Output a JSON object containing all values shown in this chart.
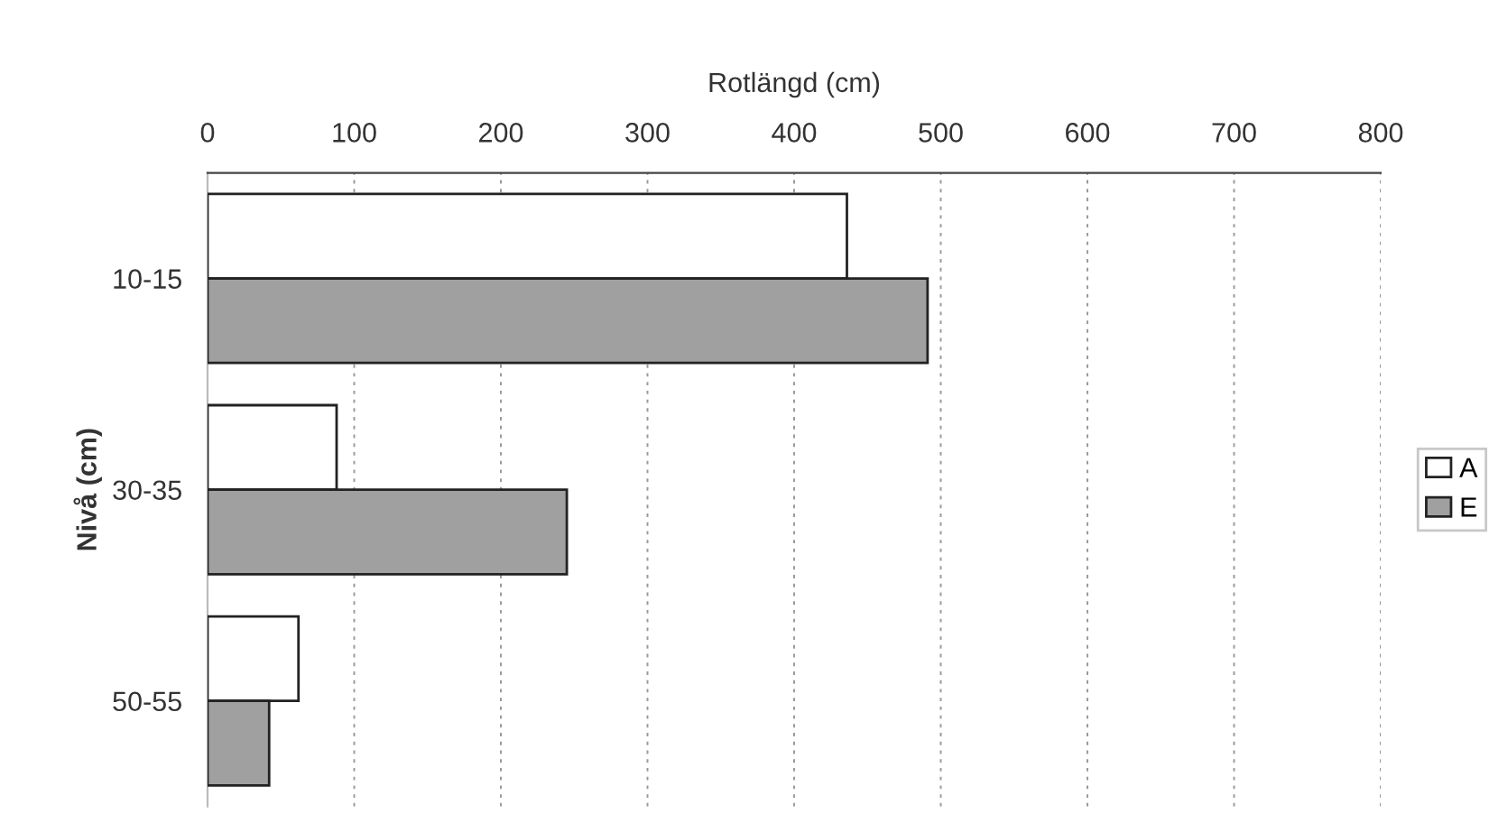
{
  "chart_data": {
    "type": "bar",
    "orientation": "horizontal",
    "xlabel": "Rotlängd (cm)",
    "ylabel": "Nivå (cm)",
    "categories": [
      "10-15",
      "30-35",
      "50-55"
    ],
    "series": [
      {
        "name": "A",
        "color": "#ffffff",
        "values": [
          436,
          88,
          62
        ]
      },
      {
        "name": "E",
        "color": "#a0a0a0",
        "values": [
          491,
          245,
          42
        ]
      }
    ],
    "xlim": [
      0,
      800
    ],
    "xticks": [
      0,
      100,
      200,
      300,
      400,
      500,
      600,
      700,
      800
    ],
    "grid": "x",
    "legend": "right"
  }
}
